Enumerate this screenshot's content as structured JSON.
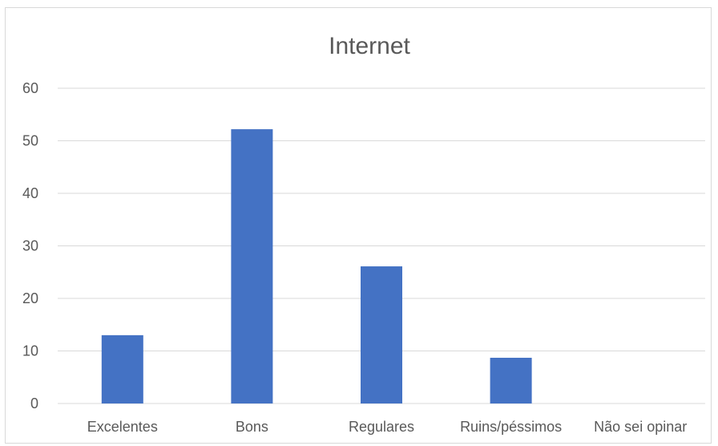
{
  "chart_data": {
    "type": "bar",
    "title": "Internet",
    "categories": [
      "Excelentes",
      "Bons",
      "Regulares",
      "Ruins/péssimos",
      "Não sei opinar"
    ],
    "values": [
      13,
      52.2,
      26.1,
      8.7,
      0
    ],
    "ylim": [
      0,
      60
    ],
    "yticks": [
      0,
      10,
      20,
      30,
      40,
      50,
      60
    ],
    "xlabel": "",
    "ylabel": "",
    "grid": true,
    "legend": "none",
    "bar_color": "#4472c4",
    "grid_color": "#d9d9d9",
    "text_color": "#595959"
  }
}
